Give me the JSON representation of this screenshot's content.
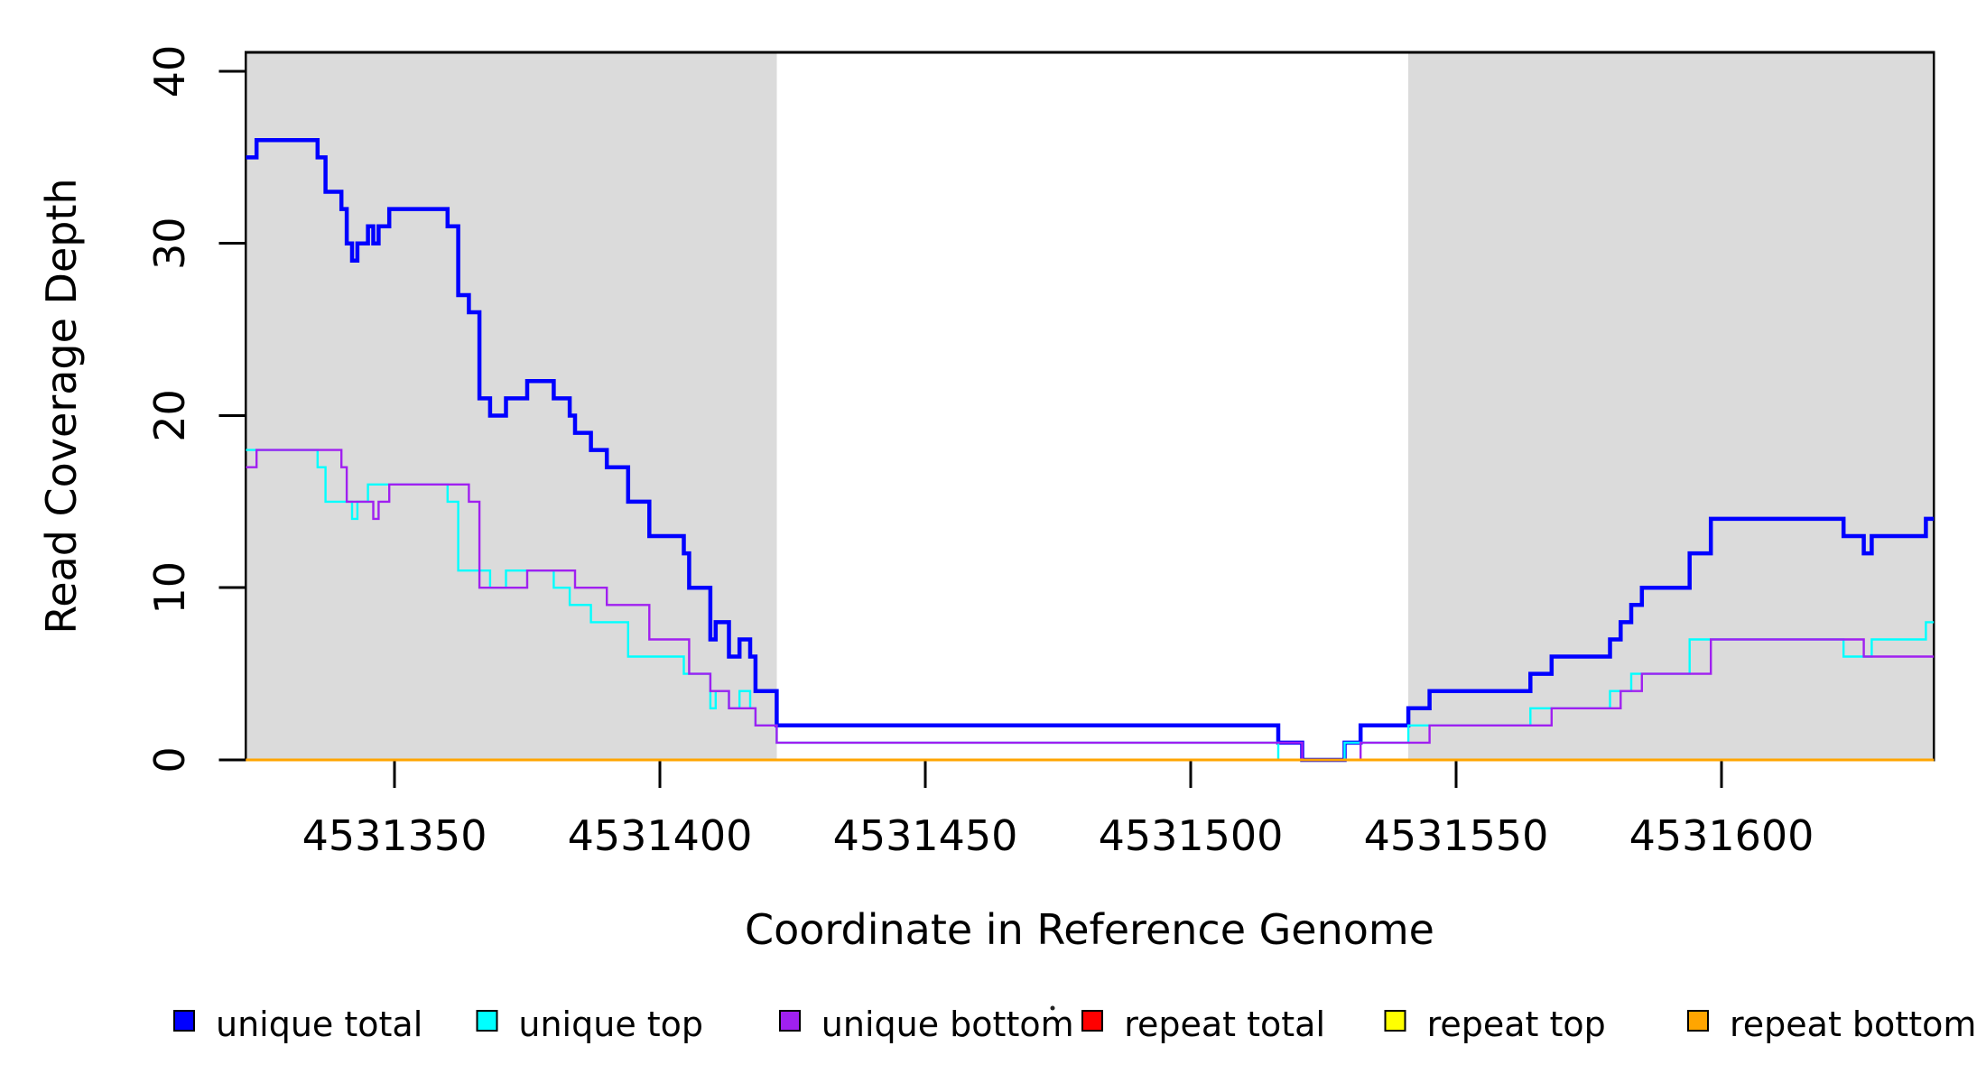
{
  "figure": {
    "background": "#ffffff",
    "band_color": "#DBDBDB",
    "axis_color": "#000000"
  },
  "chart_data": {
    "type": "line",
    "subtype": "step-coverage",
    "title": "",
    "xlabel": "Coordinate in Reference Genome",
    "ylabel": "Read Coverage Depth",
    "xlim": [
      4531322,
      4531640
    ],
    "ylim": [
      0,
      41.1
    ],
    "x_ticks": [
      4531350,
      4531400,
      4531450,
      4531500,
      4531550,
      4531600
    ],
    "y_ticks": [
      0,
      10,
      20,
      30,
      40
    ],
    "grid": false,
    "legend_position": "bottom",
    "shaded_regions": [
      {
        "from": 4531322,
        "to": 4531422
      },
      {
        "from": 4531541,
        "to": 4531640
      }
    ],
    "series": [
      {
        "name": "unique total",
        "color": "#0000FF",
        "width": 4.5,
        "steps": [
          [
            4531322,
            35
          ],
          [
            4531324,
            36
          ],
          [
            4531335.5,
            35
          ],
          [
            4531337,
            33
          ],
          [
            4531340,
            32
          ],
          [
            4531341,
            30
          ],
          [
            4531342,
            29
          ],
          [
            4531343,
            30
          ],
          [
            4531345,
            31
          ],
          [
            4531346,
            30
          ],
          [
            4531347,
            31
          ],
          [
            4531349,
            32
          ],
          [
            4531360,
            31
          ],
          [
            4531362,
            27
          ],
          [
            4531364,
            26
          ],
          [
            4531366,
            21
          ],
          [
            4531368,
            20
          ],
          [
            4531371,
            21
          ],
          [
            4531375,
            22
          ],
          [
            4531380,
            21
          ],
          [
            4531383,
            20
          ],
          [
            4531384,
            19
          ],
          [
            4531387,
            18
          ],
          [
            4531390,
            17
          ],
          [
            4531394,
            15
          ],
          [
            4531398,
            13
          ],
          [
            4531404.5,
            12
          ],
          [
            4531405.5,
            10
          ],
          [
            4531409.5,
            7
          ],
          [
            4531410.5,
            8
          ],
          [
            4531413,
            6
          ],
          [
            4531415,
            7
          ],
          [
            4531417,
            6
          ],
          [
            4531418,
            4
          ],
          [
            4531422,
            2
          ],
          [
            4531516.5,
            1
          ],
          [
            4531521,
            0
          ],
          [
            4531529,
            1
          ],
          [
            4531532,
            2
          ],
          [
            4531541,
            3
          ],
          [
            4531545,
            4
          ],
          [
            4531564,
            5
          ],
          [
            4531568,
            6
          ],
          [
            4531579,
            7
          ],
          [
            4531581,
            8
          ],
          [
            4531583,
            9
          ],
          [
            4531585,
            10
          ],
          [
            4531594,
            12
          ],
          [
            4531598,
            14
          ],
          [
            4531623,
            13
          ],
          [
            4531626.8,
            12
          ],
          [
            4531628.3,
            13
          ],
          [
            4531638.5,
            14
          ]
        ]
      },
      {
        "name": "unique top",
        "color": "#00FFFF",
        "width": 2.4,
        "steps": [
          [
            4531322,
            18
          ],
          [
            4531335.5,
            17
          ],
          [
            4531337,
            15
          ],
          [
            4531342,
            14
          ],
          [
            4531343,
            15
          ],
          [
            4531345,
            16
          ],
          [
            4531360,
            15
          ],
          [
            4531362,
            11
          ],
          [
            4531368,
            10
          ],
          [
            4531371,
            11
          ],
          [
            4531380,
            10
          ],
          [
            4531383,
            9
          ],
          [
            4531387,
            8
          ],
          [
            4531394,
            6
          ],
          [
            4531404.5,
            5
          ],
          [
            4531409.5,
            3
          ],
          [
            4531410.5,
            4
          ],
          [
            4531413,
            3
          ],
          [
            4531415,
            4
          ],
          [
            4531417,
            3
          ],
          [
            4531418,
            2
          ],
          [
            4531422,
            1
          ],
          [
            4531516.5,
            0
          ],
          [
            4531529,
            1
          ],
          [
            4531541,
            2
          ],
          [
            4531564,
            3
          ],
          [
            4531579,
            4
          ],
          [
            4531583,
            5
          ],
          [
            4531594,
            7
          ],
          [
            4531623,
            6
          ],
          [
            4531628.3,
            7
          ],
          [
            4531638.5,
            8
          ]
        ]
      },
      {
        "name": "unique bottom",
        "color": "#A020F0",
        "width": 2.4,
        "steps": [
          [
            4531322,
            17
          ],
          [
            4531324,
            18
          ],
          [
            4531340,
            17
          ],
          [
            4531341,
            15
          ],
          [
            4531346,
            14
          ],
          [
            4531347,
            15
          ],
          [
            4531349,
            16
          ],
          [
            4531364,
            15
          ],
          [
            4531366,
            10
          ],
          [
            4531375,
            11
          ],
          [
            4531384,
            10
          ],
          [
            4531390,
            9
          ],
          [
            4531398,
            7
          ],
          [
            4531405.5,
            5
          ],
          [
            4531409.5,
            4
          ],
          [
            4531413,
            3
          ],
          [
            4531418,
            2
          ],
          [
            4531422,
            1
          ],
          [
            4531521,
            0
          ],
          [
            4531532,
            1
          ],
          [
            4531545,
            2
          ],
          [
            4531568,
            3
          ],
          [
            4531581,
            4
          ],
          [
            4531585,
            5
          ],
          [
            4531598,
            7
          ],
          [
            4531626.8,
            6
          ]
        ]
      },
      {
        "name": "repeat total",
        "color": "#FF0000",
        "width": 2.4,
        "steps": [
          [
            4531322,
            0
          ]
        ]
      },
      {
        "name": "repeat top",
        "color": "#FFFF00",
        "width": 2.4,
        "steps": [
          [
            4531322,
            0
          ]
        ]
      },
      {
        "name": "repeat bottom",
        "color": "#FFA500",
        "width": 3,
        "steps": [
          [
            4531322,
            0
          ]
        ]
      }
    ]
  }
}
